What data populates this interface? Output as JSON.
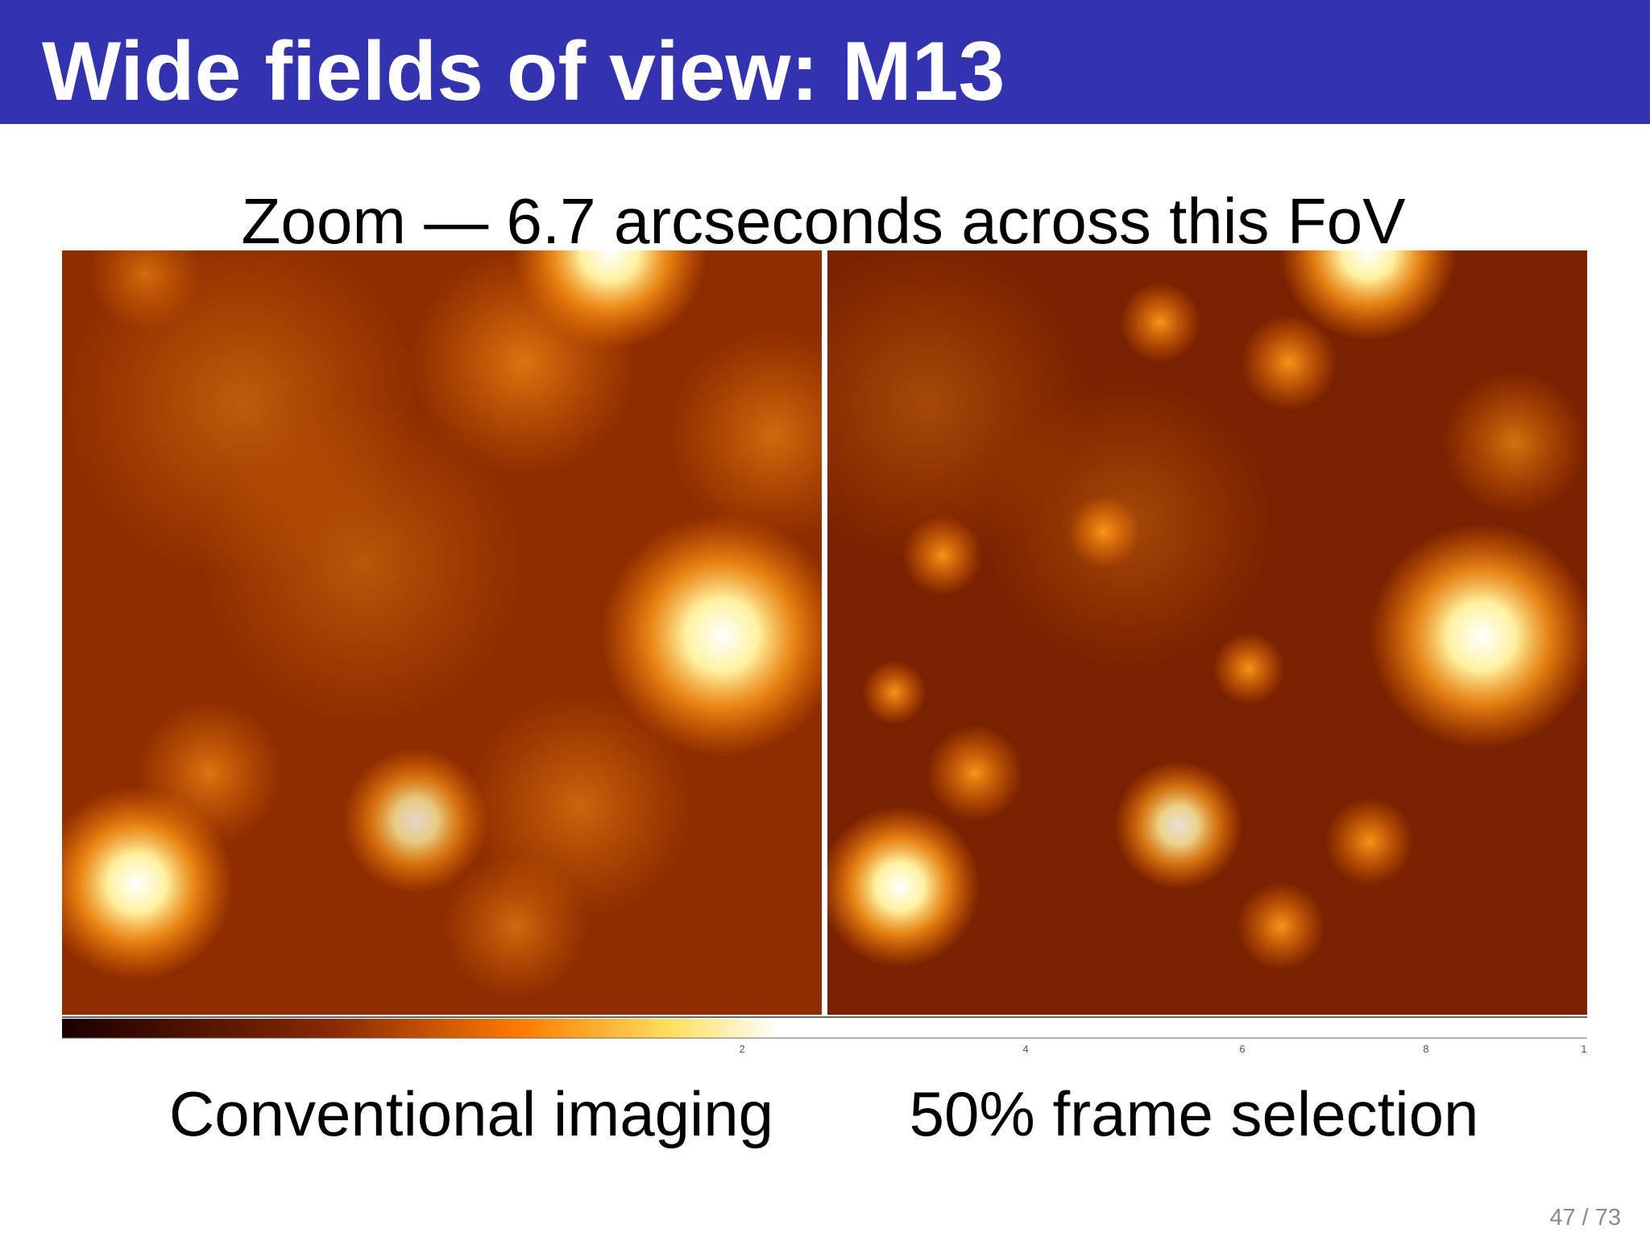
{
  "header": {
    "title": "Wide fields of view: M13"
  },
  "subtitle": "Zoom — 6.7 arcseconds across this FoV",
  "colorbar": {
    "tick_labels": [
      "2",
      "4",
      "6",
      "8",
      "1"
    ]
  },
  "captions": {
    "left": "Conventional imaging",
    "right": "50% frame selection"
  },
  "footer": {
    "page_number": "47 / 73"
  }
}
